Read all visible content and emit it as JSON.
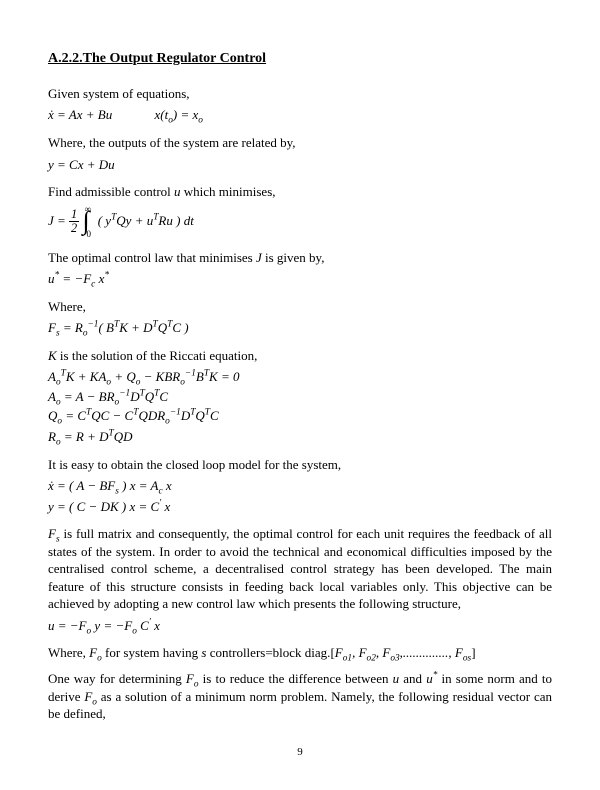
{
  "title": "A.2.2.The Output Regulator Control",
  "p1": "Given system of equations,",
  "eq1": "ẋ = Ax + Bu             x(t",
  "eq1b": ") = x",
  "p2": "Where, the outputs of the system are related by,",
  "eq2": "y = Cx + Du",
  "p3_a": "Find admissible control ",
  "p3_b": " which minimises,",
  "eq3_pre": "J = ",
  "eq3_body": "( y",
  "eq3_mid": "Qy + u",
  "eq3_end": "Ru ) dt",
  "p4_a": "The optimal control law that minimises ",
  "p4_b": " is given by,",
  "eq4": "u",
  "eq4b": " = −F",
  "eq4c": " x",
  "p5": "Where,",
  "eq5": "F",
  "eq5b": " = R",
  "eq5c": "( B",
  "eq5d": "K + D",
  "eq5e": "Q",
  "eq5f": "C )",
  "p6_a": " is the solution of the Riccati equation,",
  "eq6": "A",
  "eq6b": "K + KA",
  "eq6c": " + Q",
  "eq6d": " − KBR",
  "eq6e": "B",
  "eq6f": "K = 0",
  "eq7": "A",
  "eq7b": " = A − BR",
  "eq7c": "D",
  "eq7d": "Q",
  "eq7e": "C",
  "eq8": "Q",
  "eq8b": " = C",
  "eq8c": "QC − C",
  "eq8d": "QDR",
  "eq8e": "D",
  "eq8f": "Q",
  "eq8g": "C",
  "eq9": "R",
  "eq9b": " = R + D",
  "eq9c": "QD",
  "p7": "It is easy to obtain the closed loop model for the system,",
  "eq10": "ẋ = ( A − BF",
  "eq10b": " ) x = A",
  "eq10c": " x",
  "eq11": "y = ( C − DK ) x = C",
  "eq11b": " x",
  "p8_a": " is full matrix and consequently, the optimal control for each unit requires the feedback of all states of the system. In order to avoid the technical and economical difficulties imposed by the centralised control scheme, a decentralised control strategy has been developed. The main feature of this structure consists in feeding back local variables only. This objective can be achieved by adopting a new control law which presents the following structure,",
  "eq12": "u = −F",
  "eq12b": " y = −F",
  "eq12c": " C",
  "eq12d": " x",
  "p9_a": "Where, ",
  "p9_b": " for system having ",
  "p9_c": " controllers=block diag.",
  "p10_a": "One way for determining ",
  "p10_b": " is to reduce the difference between ",
  "p10_c": " and ",
  "p10_d": " in some norm and to derive ",
  "p10_e": " as a solution of a minimum norm problem. Namely, the following residual vector can be defined,",
  "pagenum": "9",
  "sym": {
    "u": "u",
    "J": "J",
    "K": "K",
    "s": "s",
    "Fs": "F",
    "Fo": "F",
    "T": "T",
    "star": "*",
    "o": "o",
    "c": "c",
    "prime": "′",
    "neg1": "−1",
    "half_num": "1",
    "half_den": "2",
    "inf": "∞",
    "zero": "0",
    "lbrack": "[",
    "rbrack": "]",
    "list": "F",
    "comma": ", ",
    "dots": ",.............., "
  }
}
